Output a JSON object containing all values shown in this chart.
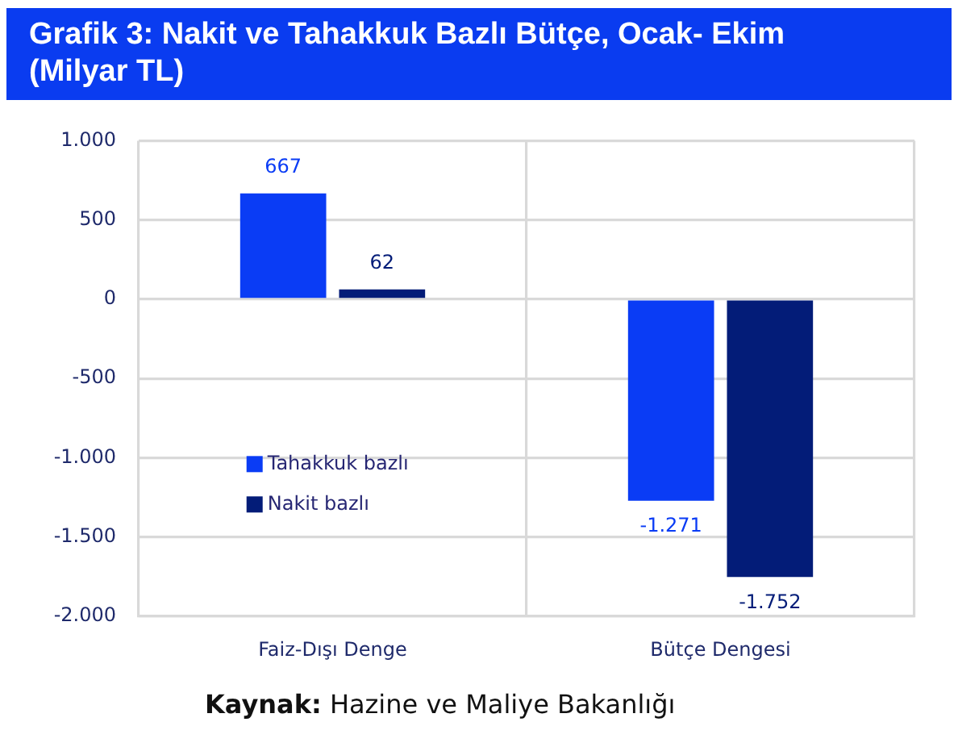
{
  "chart_data": {
    "type": "bar",
    "title": "Grafik 3: Nakit ve Tahakkuk Bazlı Bütçe, Ocak- Ekim (Milyar TL)",
    "categories": [
      "Faiz-Dışı Denge",
      "Bütçe Dengesi"
    ],
    "series": [
      {
        "name": "Tahakkuk bazlı",
        "color": "#0a3cf5",
        "values": [
          667,
          -1271
        ],
        "value_labels": [
          "667",
          "-1.271"
        ]
      },
      {
        "name": "Nakit bazlı",
        "color": "#031c78",
        "values": [
          62,
          -1752
        ],
        "value_labels": [
          "62",
          "-1.752"
        ]
      }
    ],
    "ylim": [
      -2000,
      1000
    ],
    "yticks": [
      {
        "value": 1000,
        "label": "1.000"
      },
      500,
      0,
      -500,
      {
        "value": -1000,
        "label": "-1.000"
      },
      {
        "value": -1500,
        "label": "-1.500"
      },
      {
        "value": -2000,
        "label": "-2.000"
      }
    ],
    "grid": true,
    "legend": "left",
    "annotations": [
      "Kaynak: Hazine ve Maliye Bakanlığı"
    ]
  }
}
